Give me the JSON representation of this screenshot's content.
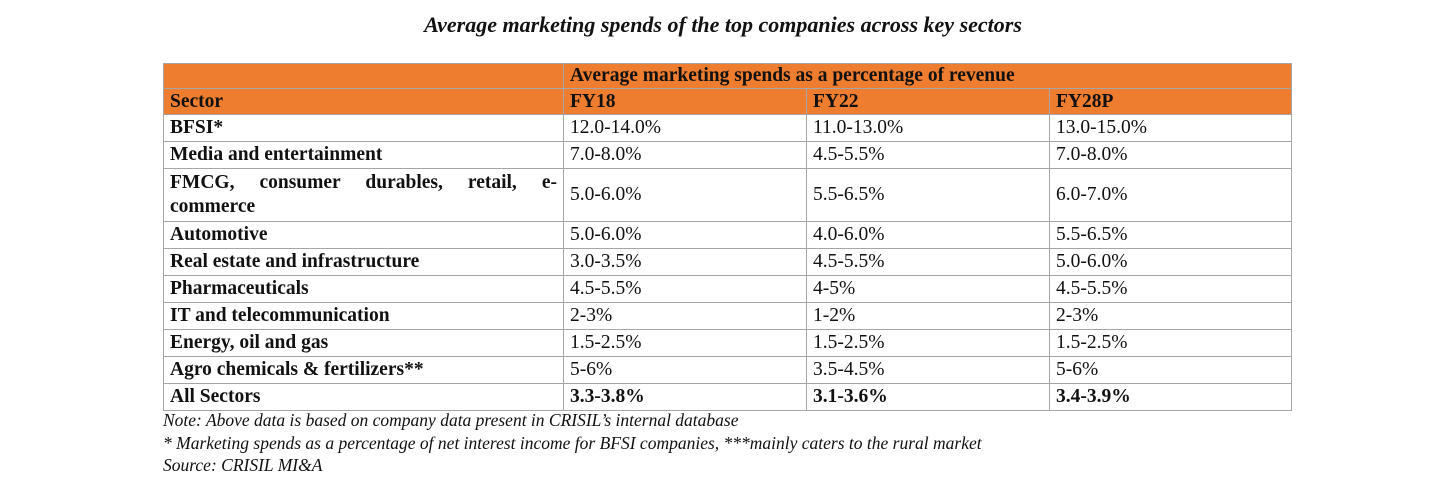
{
  "title": "Average marketing spends of the top companies across key sectors",
  "chart_data": {
    "type": "table",
    "title": "Average marketing spends of the top companies across key sectors",
    "group_header": "Average marketing spends as a percentage of revenue",
    "columns": [
      "Sector",
      "FY18",
      "FY22",
      "FY28P"
    ],
    "rows": [
      {
        "sector": "BFSI*",
        "values": [
          "12.0-14.0%",
          "11.0-13.0%",
          "13.0-15.0%"
        ]
      },
      {
        "sector": "Media and entertainment",
        "values": [
          "7.0-8.0%",
          "4.5-5.5%",
          "7.0-8.0%"
        ]
      },
      {
        "sector": "FMCG, consumer durables, retail, e-commerce",
        "values": [
          "5.0-6.0%",
          "5.5-6.5%",
          "6.0-7.0%"
        ]
      },
      {
        "sector": "Automotive",
        "values": [
          "5.0-6.0%",
          "4.0-6.0%",
          "5.5-6.5%"
        ]
      },
      {
        "sector": "Real estate and infrastructure",
        "values": [
          "3.0-3.5%",
          "4.5-5.5%",
          "5.0-6.0%"
        ]
      },
      {
        "sector": "Pharmaceuticals",
        "values": [
          "4.5-5.5%",
          "4-5%",
          "4.5-5.5%"
        ]
      },
      {
        "sector": "IT and telecommunication",
        "values": [
          "2-3%",
          "1-2%",
          "2-3%"
        ]
      },
      {
        "sector": "Energy, oil and gas",
        "values": [
          "1.5-2.5%",
          "1.5-2.5%",
          "1.5-2.5%"
        ]
      },
      {
        "sector": "Agro chemicals & fertilizers**",
        "values": [
          "5-6%",
          "3.5-4.5%",
          "5-6%"
        ]
      },
      {
        "sector": "All Sectors",
        "values": [
          "3.3-3.8%",
          "3.1-3.6%",
          "3.4-3.9%"
        ]
      }
    ]
  },
  "notes": [
    "Note: Above data is based on company data present in CRISIL’s internal database",
    "* Marketing spends as a percentage of net interest income for BFSI companies, ***mainly caters to the rural market",
    "Source: CRISIL MI&A"
  ],
  "colors": {
    "header_fill": "#ef7d30",
    "border": "#a6a6a6",
    "text": "#111111"
  }
}
